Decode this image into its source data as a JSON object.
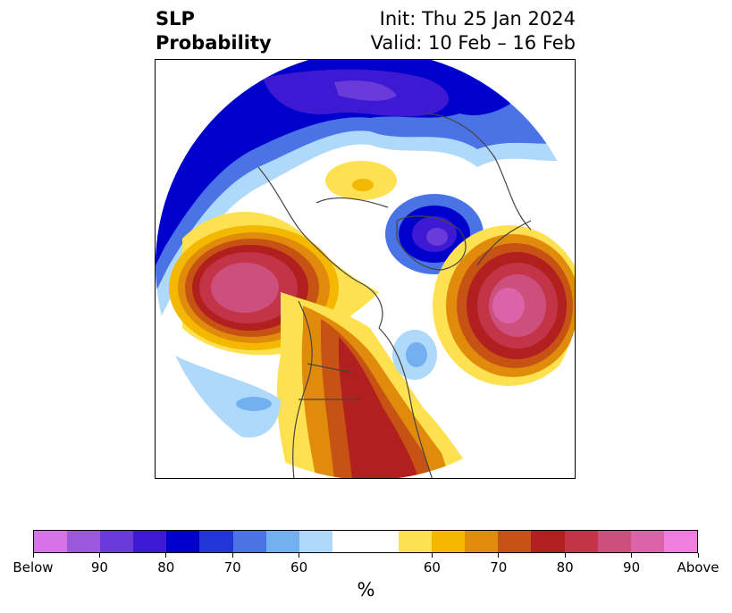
{
  "title": {
    "left_line1": "SLP",
    "left_line2": "Probability",
    "right_line1": "Init: Thu 25 Jan 2024",
    "right_line2": "Valid: 10 Feb – 16 Feb"
  },
  "colorbar": {
    "label": "%",
    "colors": [
      "#d673e8",
      "#9b58de",
      "#6a3bd8",
      "#3d19d4",
      "#0000cc",
      "#2236d8",
      "#4a73e6",
      "#74b0f0",
      "#aed9fa",
      "#ffffff",
      "#ffffff",
      "#fde150",
      "#f4b800",
      "#e08b0c",
      "#c65313",
      "#b21f1f",
      "#c33448",
      "#cc4f7e",
      "#dd63a8",
      "#ee7ee0"
    ],
    "ticks": [
      "Below",
      "90",
      "80",
      "70",
      "60",
      "60",
      "70",
      "80",
      "90",
      "Above"
    ]
  },
  "map": {
    "projection": "north-polar-stereographic",
    "features": [
      "coastlines",
      "country-borders",
      "state-borders"
    ]
  }
}
